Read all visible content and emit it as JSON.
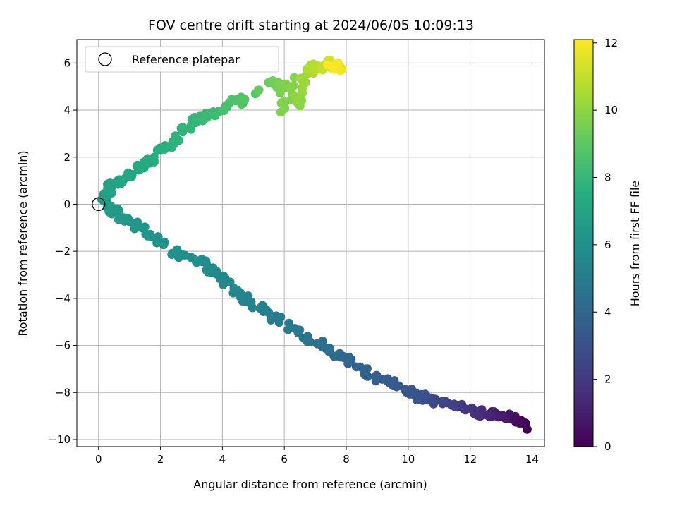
{
  "chart_data": {
    "type": "scatter",
    "title": "FOV centre drift starting at 2024/06/05 10:09:13",
    "xlabel": "Angular distance from reference (arcmin)",
    "ylabel": "Rotation from reference (arcmin)",
    "xlim": [
      -0.7,
      14.4
    ],
    "ylim": [
      -10.3,
      7.0
    ],
    "xticks": [
      0,
      2,
      4,
      6,
      8,
      10,
      12,
      14
    ],
    "yticks": [
      -10,
      -8,
      -6,
      -4,
      -2,
      0,
      2,
      4,
      6
    ],
    "grid": true,
    "legend": {
      "position": "top-left",
      "entries": [
        "Reference platepar"
      ]
    },
    "reference_point": {
      "x": 0,
      "y": 0
    },
    "colorbar": {
      "label": "Hours from first FF file",
      "range": [
        0,
        12.1
      ],
      "ticks": [
        0,
        2,
        4,
        6,
        8,
        10,
        12
      ],
      "colormap": "viridis"
    },
    "trend": [
      [
        13.8,
        -9.5,
        0.0
      ],
      [
        13.5,
        -9.2,
        0.3
      ],
      [
        13.2,
        -9.05,
        0.6
      ],
      [
        12.9,
        -8.95,
        0.9
      ],
      [
        12.6,
        -8.9,
        1.2
      ],
      [
        12.3,
        -8.85,
        1.5
      ],
      [
        12.0,
        -8.75,
        1.8
      ],
      [
        11.6,
        -8.6,
        2.1
      ],
      [
        11.2,
        -8.5,
        2.4
      ],
      [
        10.8,
        -8.35,
        2.7
      ],
      [
        10.4,
        -8.2,
        3.0
      ],
      [
        10.0,
        -7.95,
        3.2
      ],
      [
        9.5,
        -7.6,
        3.4
      ],
      [
        9.0,
        -7.35,
        3.6
      ],
      [
        8.4,
        -6.9,
        3.8
      ],
      [
        8.0,
        -6.6,
        4.0
      ],
      [
        7.6,
        -6.3,
        4.2
      ],
      [
        7.2,
        -6.0,
        4.4
      ],
      [
        6.7,
        -5.7,
        4.6
      ],
      [
        6.3,
        -5.4,
        4.8
      ],
      [
        5.9,
        -5.0,
        5.0
      ],
      [
        5.4,
        -4.6,
        5.15
      ],
      [
        5.0,
        -4.2,
        5.3
      ],
      [
        4.6,
        -3.85,
        5.45
      ],
      [
        4.3,
        -3.55,
        5.55
      ],
      [
        3.9,
        -3.1,
        5.65
      ],
      [
        3.6,
        -2.7,
        5.75
      ],
      [
        3.2,
        -2.4,
        5.85
      ],
      [
        2.7,
        -2.15,
        5.95
      ],
      [
        2.4,
        -2.05,
        6.05
      ],
      [
        1.9,
        -1.4,
        6.15
      ],
      [
        1.5,
        -1.1,
        6.25
      ],
      [
        1.1,
        -0.75,
        6.35
      ],
      [
        0.7,
        -0.45,
        6.45
      ],
      [
        0.4,
        -0.2,
        6.55
      ],
      [
        0.2,
        0.1,
        6.65
      ],
      [
        0.2,
        0.4,
        6.75
      ],
      [
        0.35,
        0.7,
        6.85
      ],
      [
        0.6,
        0.95,
        6.95
      ],
      [
        0.9,
        1.2,
        7.05
      ],
      [
        1.2,
        1.5,
        7.15
      ],
      [
        1.5,
        1.8,
        7.3
      ],
      [
        1.9,
        2.1,
        7.45
      ],
      [
        2.2,
        2.4,
        7.6
      ],
      [
        2.5,
        2.8,
        7.75
      ],
      [
        2.9,
        3.3,
        7.9
      ],
      [
        3.3,
        3.7,
        8.05
      ],
      [
        3.7,
        3.85,
        8.2
      ],
      [
        4.1,
        4.1,
        8.4
      ],
      [
        4.4,
        4.4,
        8.6
      ],
      [
        4.6,
        4.4,
        8.75
      ],
      [
        5.6,
        5.15,
        9.4
      ],
      [
        5.9,
        5.0,
        9.6
      ],
      [
        6.0,
        3.9,
        9.7
      ],
      [
        6.2,
        5.3,
        9.8
      ],
      [
        6.4,
        4.1,
        9.9
      ],
      [
        6.5,
        4.8,
        10.1
      ],
      [
        6.6,
        5.5,
        10.3
      ],
      [
        6.8,
        5.7,
        10.5
      ],
      [
        7.0,
        5.85,
        10.7
      ],
      [
        7.2,
        5.8,
        10.9
      ],
      [
        7.4,
        5.9,
        11.1
      ],
      [
        7.6,
        6.0,
        11.3
      ],
      [
        7.8,
        5.85,
        11.6
      ],
      [
        7.7,
        5.75,
        11.9
      ],
      [
        7.5,
        6.1,
        12.1
      ]
    ]
  }
}
